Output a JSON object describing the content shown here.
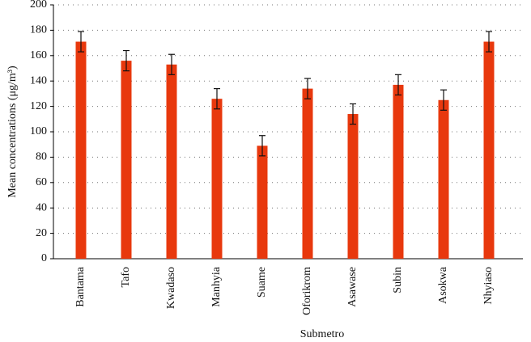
{
  "chart_data": {
    "type": "bar",
    "x_label": "Submetro",
    "y_label": "Mean concentrations (μg/m³)",
    "categories": [
      "Bantama",
      "Tafo",
      "Kwadaso",
      "Manhyia",
      "Suame",
      "Oforikrom",
      "Asawase",
      "Subin",
      "Asokwa",
      "Nhyiaso"
    ],
    "values": [
      171,
      156,
      153,
      126,
      89,
      134,
      114,
      137,
      125,
      171
    ],
    "errors": [
      8,
      8,
      8,
      8,
      8,
      8,
      8,
      8,
      8,
      8
    ],
    "color": "#e8380d",
    "ylim": [
      0,
      200
    ],
    "yticks": [
      0,
      20,
      40,
      60,
      80,
      100,
      120,
      140,
      160,
      180,
      200
    ],
    "grid": true
  }
}
